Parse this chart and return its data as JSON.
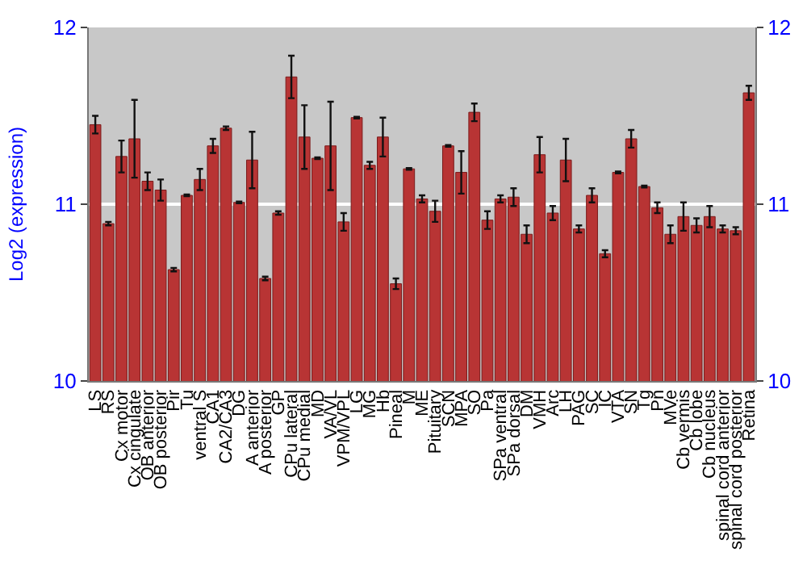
{
  "chart_data": {
    "type": "bar",
    "ylabel": "Log2 (expression)",
    "categories": [
      "LS",
      "RS",
      "Cx motor",
      "Cx cingulate",
      "OB anterior",
      "OB posterior",
      "Pir",
      "Tu",
      "ventral S",
      "CA1",
      "CA2/CA3",
      "DG",
      "A anterior",
      "A posterior",
      "GP",
      "CPu lateral",
      "CPu medial",
      "MD",
      "VA/VL",
      "VPM/VPL",
      "LG",
      "MG",
      "Hb",
      "Pineal",
      "M",
      "ME",
      "Pituitary",
      "SCN",
      "MPA",
      "SO",
      "Pa",
      "SPa ventral",
      "SPa dorsal",
      "DM",
      "VMH",
      "Arc",
      "LH",
      "PAG",
      "SC",
      "IC",
      "VTA",
      "SN",
      "Tg",
      "Pn",
      "MVe",
      "Cb vermis",
      "Cb lobe",
      "Cb nucleus",
      "spinal cord anterior",
      "spinal cord posterior",
      "Retina"
    ],
    "values": [
      11.45,
      10.89,
      11.27,
      11.37,
      11.13,
      11.08,
      10.63,
      11.05,
      11.14,
      11.33,
      11.43,
      11.01,
      11.25,
      10.58,
      10.95,
      11.72,
      11.38,
      11.26,
      11.33,
      10.9,
      11.49,
      11.22,
      11.38,
      10.55,
      11.2,
      11.03,
      10.96,
      11.33,
      11.18,
      11.52,
      10.91,
      11.03,
      11.04,
      10.83,
      11.28,
      10.95,
      11.25,
      10.86,
      11.05,
      10.72,
      11.18,
      11.37,
      11.1,
      10.98,
      10.83,
      10.93,
      10.88,
      10.93,
      10.86,
      10.85,
      11.63
    ],
    "errors": [
      0.05,
      0.01,
      0.09,
      0.22,
      0.05,
      0.06,
      0.01,
      0.005,
      0.06,
      0.04,
      0.01,
      0.005,
      0.16,
      0.01,
      0.01,
      0.12,
      0.18,
      0.005,
      0.25,
      0.05,
      0.005,
      0.02,
      0.11,
      0.03,
      0.005,
      0.02,
      0.06,
      0.005,
      0.12,
      0.05,
      0.05,
      0.02,
      0.05,
      0.05,
      0.1,
      0.04,
      0.12,
      0.02,
      0.04,
      0.02,
      0.005,
      0.05,
      0.005,
      0.03,
      0.05,
      0.08,
      0.04,
      0.06,
      0.02,
      0.02,
      0.04
    ],
    "color": "#b83434",
    "ylim": [
      10,
      12
    ],
    "yticks": [
      10,
      11,
      12
    ],
    "y2lim": [
      10,
      12
    ],
    "y2ticks": [
      10,
      11,
      12
    ],
    "grid": "y"
  }
}
